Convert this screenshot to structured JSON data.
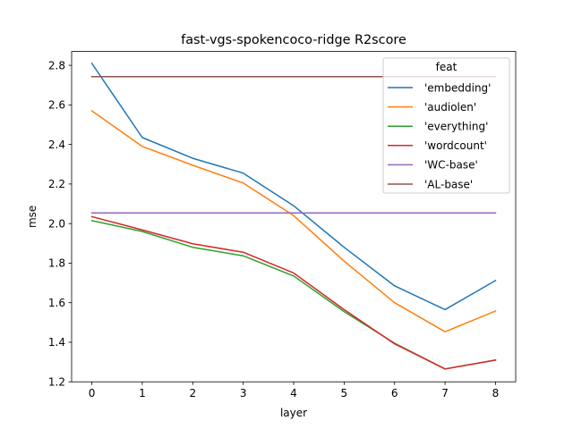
{
  "chart_data": {
    "type": "line",
    "title": "fast-vgs-spokencoco-ridge R2score",
    "xlabel": "layer",
    "ylabel": "mse",
    "x": [
      0,
      1,
      2,
      3,
      4,
      5,
      6,
      7,
      8
    ],
    "xlim": [
      -0.4,
      8.4
    ],
    "ylim": [
      1.2,
      2.87
    ],
    "xticks": [
      "0",
      "1",
      "2",
      "3",
      "4",
      "5",
      "6",
      "7",
      "8"
    ],
    "yticks": [
      "1.2",
      "1.4",
      "1.6",
      "1.8",
      "2.0",
      "2.2",
      "2.4",
      "2.6",
      "2.8"
    ],
    "grid": false,
    "legend": {
      "title": "feat",
      "position": "top-right"
    },
    "series": [
      {
        "name": "'embedding'",
        "color": "#1f77b4",
        "values": [
          2.81,
          2.435,
          2.33,
          2.255,
          2.09,
          1.88,
          1.685,
          1.565,
          1.712
        ]
      },
      {
        "name": "'audiolen'",
        "color": "#ff7f0e",
        "values": [
          2.57,
          2.39,
          2.295,
          2.205,
          2.04,
          1.81,
          1.6,
          1.453,
          1.558
        ]
      },
      {
        "name": "'everything'",
        "color": "#2ca02c",
        "values": [
          2.015,
          1.96,
          1.88,
          1.837,
          1.735,
          1.555,
          1.395,
          1.265,
          1.31
        ]
      },
      {
        "name": "'wordcount'",
        "color": "#d62728",
        "values": [
          2.035,
          1.968,
          1.898,
          1.855,
          1.75,
          1.565,
          1.392,
          1.265,
          1.31
        ]
      },
      {
        "name": "'WC-base'",
        "color": "#9467bd",
        "values": [
          2.054,
          2.054,
          2.054,
          2.054,
          2.054,
          2.054,
          2.054,
          2.054,
          2.054
        ]
      },
      {
        "name": "'AL-base'",
        "color": "#8c564b",
        "values": [
          2.743,
          2.743,
          2.743,
          2.743,
          2.743,
          2.743,
          2.743,
          2.743,
          2.743
        ]
      }
    ]
  }
}
